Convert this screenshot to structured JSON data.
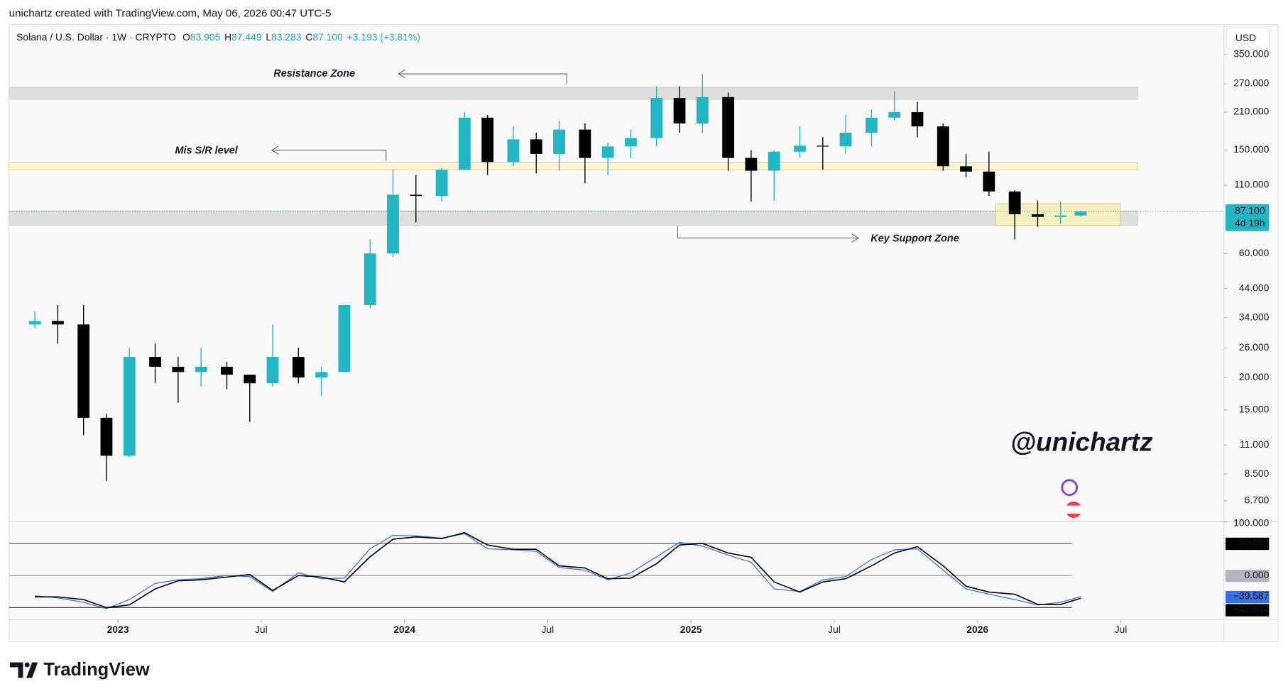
{
  "header": "unichartz created with TradingView.com, May 06, 2026 00:47 UTC-5",
  "legend": {
    "symbol": "Solana / U.S. Dollar · 1W · CRYPTO",
    "fields": [
      {
        "key": "O",
        "value": "83.905"
      },
      {
        "key": "H",
        "value": "87.449"
      },
      {
        "key": "L",
        "value": "83.283"
      },
      {
        "key": "C",
        "value": "87.100"
      }
    ],
    "change": "+3.193 (+3.81%)"
  },
  "currency": "USD",
  "watermark": "@unichartz",
  "brand": "TradingView",
  "chart_data": [
    {
      "type": "candlestick",
      "log": true,
      "grid": false,
      "x": [
        2022.71,
        2022.79,
        2022.88,
        2022.96,
        2023.04,
        2023.13,
        2023.21,
        2023.29,
        2023.38,
        2023.46,
        2023.54,
        2023.63,
        2023.71,
        2023.79,
        2023.88,
        2023.96,
        2024.04,
        2024.13,
        2024.21,
        2024.29,
        2024.38,
        2024.46,
        2024.54,
        2024.63,
        2024.71,
        2024.79,
        2024.88,
        2024.96,
        2025.04,
        2025.13,
        2025.21,
        2025.29,
        2025.38,
        2025.46,
        2025.54,
        2025.63,
        2025.71,
        2025.79,
        2025.88,
        2025.96,
        2026.04,
        2026.13,
        2026.21,
        2026.29,
        2026.36
      ],
      "open": [
        32,
        33,
        32,
        14,
        10,
        24,
        22,
        21,
        22,
        20.5,
        19,
        24,
        20,
        21,
        38,
        60,
        101,
        100,
        126,
        200,
        135,
        165,
        145,
        180,
        140,
        155,
        167,
        238,
        190,
        240,
        140,
        125,
        148,
        156,
        155,
        175,
        200,
        210,
        185,
        130,
        124,
        104,
        85,
        83,
        84
      ],
      "high": [
        36,
        38,
        38,
        14.5,
        26,
        27,
        24,
        26,
        23,
        20.5,
        32,
        26,
        22,
        38,
        68,
        126,
        120,
        128,
        210,
        205,
        185,
        175,
        195,
        190,
        160,
        180,
        264,
        264,
        295,
        250,
        150,
        150,
        185,
        168,
        205,
        215,
        253,
        230,
        190,
        145,
        148,
        105,
        96,
        95,
        87.449
      ],
      "low": [
        31,
        27,
        12,
        8,
        9.9,
        19,
        16,
        18.5,
        18,
        13.5,
        18.5,
        19,
        17,
        21,
        37,
        58,
        79,
        95,
        125,
        120,
        130,
        122,
        125,
        112,
        120,
        140,
        155,
        175,
        175,
        125,
        95,
        96,
        140,
        126,
        145,
        155,
        195,
        168,
        125,
        118,
        100,
        68,
        76,
        78,
        83.283
      ],
      "close": [
        33,
        32,
        14,
        10,
        24,
        22,
        21,
        22,
        20.5,
        19,
        24,
        20,
        21,
        38,
        60,
        101,
        100,
        126,
        200,
        135,
        165,
        145,
        180,
        140,
        155,
        167,
        238,
        190,
        240,
        140,
        125,
        148,
        156,
        155,
        175,
        200,
        210,
        185,
        130,
        124,
        104,
        85,
        83,
        84,
        87.1
      ],
      "up_color": "#22b5c3",
      "down_color": "#000000",
      "xlim": [
        2022.62,
        2026.86
      ],
      "xticks": [
        {
          "value": 2023,
          "label": "2023"
        },
        {
          "value": 2023.5,
          "label": "Jul"
        },
        {
          "value": 2024,
          "label": "2024"
        },
        {
          "value": 2024.5,
          "label": "Jul"
        },
        {
          "value": 2025,
          "label": "2025"
        },
        {
          "value": 2025.5,
          "label": "Jul"
        },
        {
          "value": 2026,
          "label": "2026"
        },
        {
          "value": 2026.5,
          "label": "Jul"
        }
      ],
      "ylim": [
        5.6,
        456
      ],
      "yticks": [
        {
          "value": 350,
          "label": "350.000"
        },
        {
          "value": 270,
          "label": "270.000"
        },
        {
          "value": 210,
          "label": "210.000"
        },
        {
          "value": 150,
          "label": "150.000"
        },
        {
          "value": 110,
          "label": "110.000"
        },
        {
          "value": 60,
          "label": "60.000"
        },
        {
          "value": 44,
          "label": "44.000"
        },
        {
          "value": 34,
          "label": "34.000"
        },
        {
          "value": 26,
          "label": "26.000"
        },
        {
          "value": 20,
          "label": "20.000"
        },
        {
          "value": 15,
          "label": "15.000"
        },
        {
          "value": 11,
          "label": "11.000"
        },
        {
          "value": 8.5,
          "label": "8.500"
        },
        {
          "value": 6.7,
          "label": "6.700"
        }
      ],
      "last_price": 87.1,
      "last_price_label": "87.100",
      "countdown": "4d 19h",
      "zones": [
        {
          "label": "Resistance Zone",
          "low": 235,
          "high": 262,
          "color": "#dedede"
        },
        {
          "label": "Mis S/R level",
          "low": 126,
          "high": 134,
          "color": "#fdf6cf"
        },
        {
          "label": "Key Support Zone",
          "low": 77,
          "high": 87.6,
          "color": "#dedede"
        }
      ],
      "range_box": {
        "low": 76.9,
        "high": 93.3,
        "color": "#f6efbf"
      }
    },
    {
      "type": "line",
      "x": [
        2022.71,
        2022.79,
        2022.88,
        2022.96,
        2023.04,
        2023.13,
        2023.21,
        2023.29,
        2023.38,
        2023.46,
        2023.54,
        2023.63,
        2023.71,
        2023.79,
        2023.88,
        2023.96,
        2024.04,
        2024.13,
        2024.21,
        2024.29,
        2024.38,
        2024.46,
        2024.54,
        2024.63,
        2024.71,
        2024.79,
        2024.88,
        2024.96,
        2025.04,
        2025.13,
        2025.21,
        2025.29,
        2025.38,
        2025.46,
        2025.54,
        2025.63,
        2025.71,
        2025.79,
        2025.88,
        2025.96,
        2026.04,
        2026.13,
        2026.21,
        2026.29,
        2026.36
      ],
      "xlim": [
        2022.62,
        2026.86
      ],
      "series": [
        {
          "color": "#3a6fe0",
          "values": [
            -38,
            -42,
            -50,
            -62,
            -45,
            -15,
            -8,
            -6,
            0,
            -2,
            -30,
            5,
            -6,
            -5,
            50,
            75,
            74,
            70,
            78,
            50,
            48,
            45,
            15,
            10,
            -8,
            5,
            35,
            62,
            55,
            38,
            25,
            -25,
            -30,
            -8,
            -2,
            30,
            48,
            50,
            10,
            -25,
            -35,
            -45,
            -55,
            -50,
            -39.587
          ],
          "last_label": "−39.587"
        },
        {
          "color": "#000000",
          "values": [
            -40,
            -40,
            -45,
            -60,
            -55,
            -25,
            -10,
            -8,
            -3,
            2,
            -28,
            0,
            -3,
            -12,
            35,
            68,
            72,
            69,
            80,
            57,
            49,
            49,
            18,
            14,
            -6,
            -5,
            22,
            57,
            60,
            42,
            34,
            -12,
            -31,
            -12,
            -6,
            18,
            42,
            54,
            18,
            -20,
            -31,
            -35,
            -54,
            -54,
            -42.644
          ],
          "last_label": "−42.644"
        }
      ],
      "levels": [
        60,
        0,
        -60
      ],
      "ylim": [
        -78,
        100
      ],
      "yticks": [
        {
          "value": 100,
          "label": "100.000"
        },
        {
          "value": 60,
          "label": "60.000"
        },
        {
          "value": 0,
          "label": "0.000"
        }
      ]
    }
  ]
}
